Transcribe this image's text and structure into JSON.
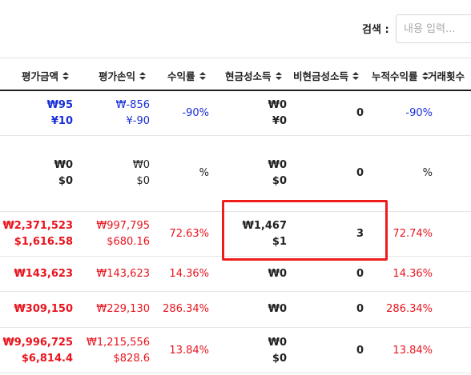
{
  "search": {
    "label": "검색 :",
    "placeholder": "내용 입력..."
  },
  "columns": [
    "평가금액",
    "평가손익",
    "수익률",
    "현금성소득",
    "비현금성소득",
    "누적수익률",
    "거래횟수"
  ],
  "rows": [
    {
      "eval_amount": [
        "₩95",
        "¥10"
      ],
      "eval_pl": [
        "₩-856",
        "¥-90"
      ],
      "return_rate": "-90%",
      "cash_income": [
        "₩0",
        "¥0"
      ],
      "noncash_income": "0",
      "cum_return": "-90%",
      "color": "blue"
    },
    {
      "eval_amount": [
        "₩0",
        "$0"
      ],
      "eval_pl": [
        "₩0",
        "$0"
      ],
      "return_rate": "%",
      "cash_income": [
        "₩0",
        "$0"
      ],
      "noncash_income": "0",
      "cum_return": "%",
      "color": "dark"
    },
    {
      "eval_amount": [
        "₩2,371,523",
        "$1,616.58"
      ],
      "eval_pl": [
        "₩997,795",
        "$680.16"
      ],
      "return_rate": "72.63%",
      "cash_income": [
        "₩1,467",
        "$1"
      ],
      "noncash_income": "3",
      "cum_return": "72.74%",
      "color": "red"
    },
    {
      "eval_amount": [
        "₩143,623"
      ],
      "eval_pl": [
        "₩143,623"
      ],
      "return_rate": "14.36%",
      "cash_income": [
        "₩0"
      ],
      "noncash_income": "0",
      "cum_return": "14.36%",
      "color": "red"
    },
    {
      "eval_amount": [
        "₩309,150"
      ],
      "eval_pl": [
        "₩229,130"
      ],
      "return_rate": "286.34%",
      "cash_income": [
        "₩0"
      ],
      "noncash_income": "0",
      "cum_return": "286.34%",
      "color": "red"
    },
    {
      "eval_amount": [
        "₩9,996,725",
        "$6,814.4"
      ],
      "eval_pl": [
        "₩1,215,556",
        "$828.6"
      ],
      "return_rate": "13.84%",
      "cash_income": [
        "₩0",
        "$0"
      ],
      "noncash_income": "0",
      "cum_return": "13.84%",
      "color": "red"
    }
  ],
  "colors": {
    "positive": "#e8141e",
    "negative": "#1a2fd6",
    "neutral": "#222222",
    "highlight": "#ee1c1c"
  }
}
